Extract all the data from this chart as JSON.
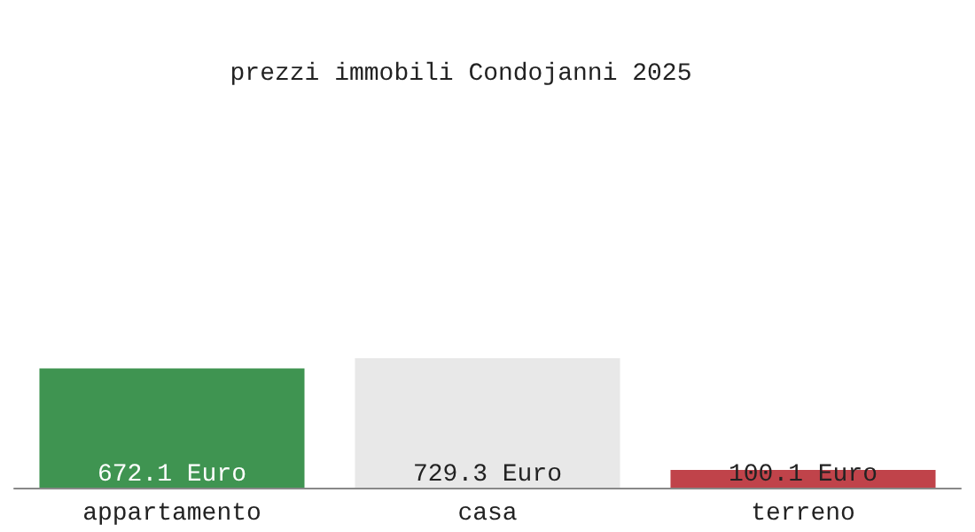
{
  "chart_data": {
    "type": "bar",
    "title": "prezzi immobili Condojanni 2025",
    "categories": [
      "appartamento",
      "casa",
      "terreno"
    ],
    "values": [
      672.1,
      729.3,
      100.1
    ],
    "colors": [
      "#3f9451",
      "#e8e8e8",
      "#c0434a"
    ],
    "value_labels": [
      "672.1 Euro",
      "729.3 Euro",
      "100.1 Euro"
    ]
  }
}
